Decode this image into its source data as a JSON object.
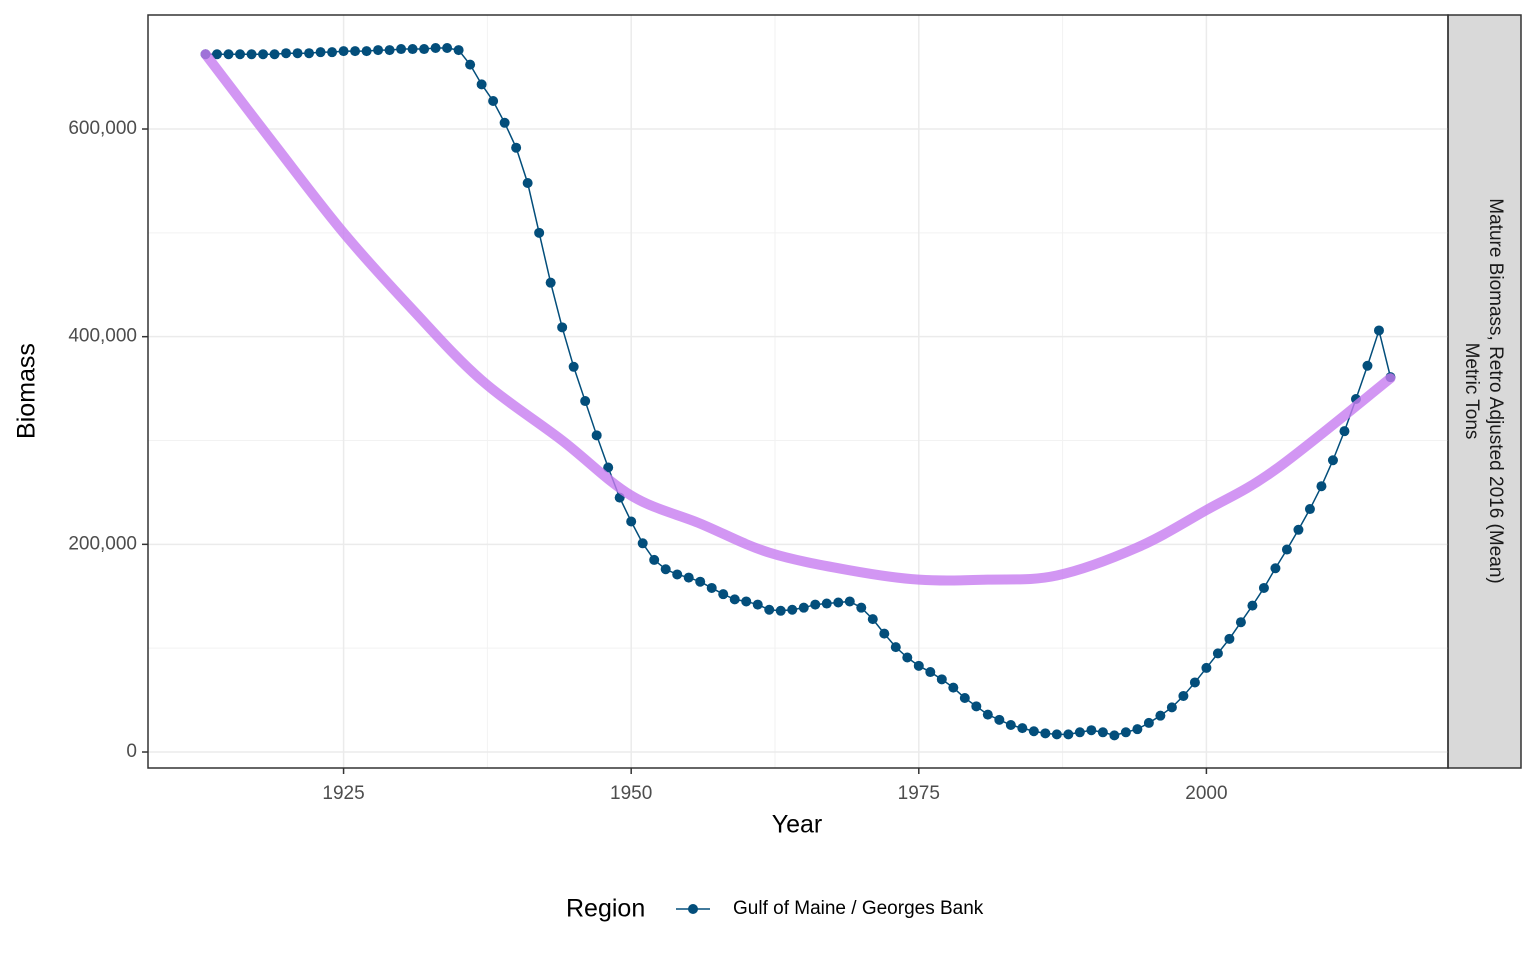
{
  "chart_data": {
    "type": "line",
    "x_label": "Year",
    "y_label": "Biomass",
    "facet_label": [
      "Mature Biomass, Retro Adjusted 2016 (Mean)",
      "Metric Tons"
    ],
    "legend_title": "Region",
    "x": [
      1913,
      1914,
      1915,
      1916,
      1917,
      1918,
      1919,
      1920,
      1921,
      1922,
      1923,
      1924,
      1925,
      1926,
      1927,
      1928,
      1929,
      1930,
      1931,
      1932,
      1933,
      1934,
      1935,
      1936,
      1937,
      1938,
      1939,
      1940,
      1941,
      1942,
      1943,
      1944,
      1945,
      1946,
      1947,
      1948,
      1949,
      1950,
      1951,
      1952,
      1953,
      1954,
      1955,
      1956,
      1957,
      1958,
      1959,
      1960,
      1961,
      1962,
      1963,
      1964,
      1965,
      1966,
      1967,
      1968,
      1969,
      1970,
      1971,
      1972,
      1973,
      1974,
      1975,
      1976,
      1977,
      1978,
      1979,
      1980,
      1981,
      1982,
      1983,
      1984,
      1985,
      1986,
      1987,
      1988,
      1989,
      1990,
      1991,
      1992,
      1993,
      1994,
      1995,
      1996,
      1997,
      1998,
      1999,
      2000,
      2001,
      2002,
      2003,
      2004,
      2005,
      2006,
      2007,
      2008,
      2009,
      2010,
      2011,
      2012,
      2013,
      2014,
      2015,
      2016
    ],
    "series": [
      {
        "name": "Gulf of Maine / Georges Bank",
        "color": "#034e7b",
        "values": [
          672000,
          672000,
          672000,
          672000,
          672000,
          672000,
          672000,
          673000,
          673000,
          673000,
          674000,
          674000,
          675000,
          675000,
          675000,
          676000,
          676000,
          677000,
          677000,
          677000,
          678000,
          678000,
          676000,
          662000,
          643000,
          627000,
          606000,
          582000,
          548000,
          500000,
          452000,
          409000,
          371000,
          338000,
          305000,
          274000,
          245000,
          222000,
          201000,
          185000,
          176000,
          171000,
          168000,
          164000,
          158000,
          152000,
          147000,
          145000,
          142000,
          137000,
          136000,
          137000,
          139000,
          142000,
          143000,
          144000,
          145000,
          139000,
          128000,
          114000,
          101000,
          91000,
          83000,
          77000,
          70000,
          62000,
          52000,
          44000,
          36000,
          31000,
          26000,
          23000,
          20000,
          18000,
          17000,
          17000,
          19000,
          21000,
          19000,
          16000,
          19000,
          22000,
          28000,
          35000,
          43000,
          54000,
          67000,
          81000,
          95000,
          109000,
          125000,
          141000,
          158000,
          177000,
          195000,
          214000,
          234000,
          256000,
          281000,
          309000,
          340000,
          372000,
          406000,
          361000
        ]
      }
    ],
    "smooth": {
      "color": "#c77cf0",
      "x": [
        1913,
        1919,
        1925,
        1931,
        1937,
        1944,
        1950,
        1956,
        1962,
        1969,
        1975,
        1981,
        1987,
        1994,
        2000,
        2006,
        2016
      ],
      "values": [
        672000,
        585000,
        500000,
        426000,
        358000,
        300000,
        247000,
        220000,
        192000,
        175000,
        166000,
        166000,
        170000,
        197000,
        233000,
        272000,
        360000
      ]
    },
    "xlim": [
      1908,
      2021
    ],
    "ylim": [
      -15400,
      709800
    ],
    "xticks": [
      1925,
      1950,
      1975,
      2000
    ],
    "yticks": [
      0,
      {
        "value": 200000,
        "label": "200,000"
      },
      {
        "value": 400000,
        "label": "400,000"
      },
      {
        "value": 600000,
        "label": "600,000"
      }
    ],
    "grid": true,
    "legend_position": "bottom"
  }
}
